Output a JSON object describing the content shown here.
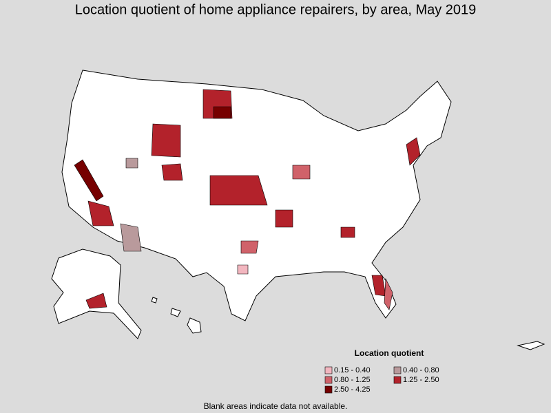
{
  "title": "Location quotient of home appliance repairers, by area, May 2019",
  "legend": {
    "title": "Location quotient",
    "items": [
      {
        "label": "0.15 - 0.40",
        "color": "#f2b6bf"
      },
      {
        "label": "0.40 - 0.80",
        "color": "#b99a9c"
      },
      {
        "label": "0.80 - 1.25",
        "color": "#d0626a"
      },
      {
        "label": "1.25 - 2.50",
        "color": "#b3222b"
      },
      {
        "label": "2.50 - 4.25",
        "color": "#760000"
      }
    ]
  },
  "footnote": "Blank areas indicate data not available."
}
